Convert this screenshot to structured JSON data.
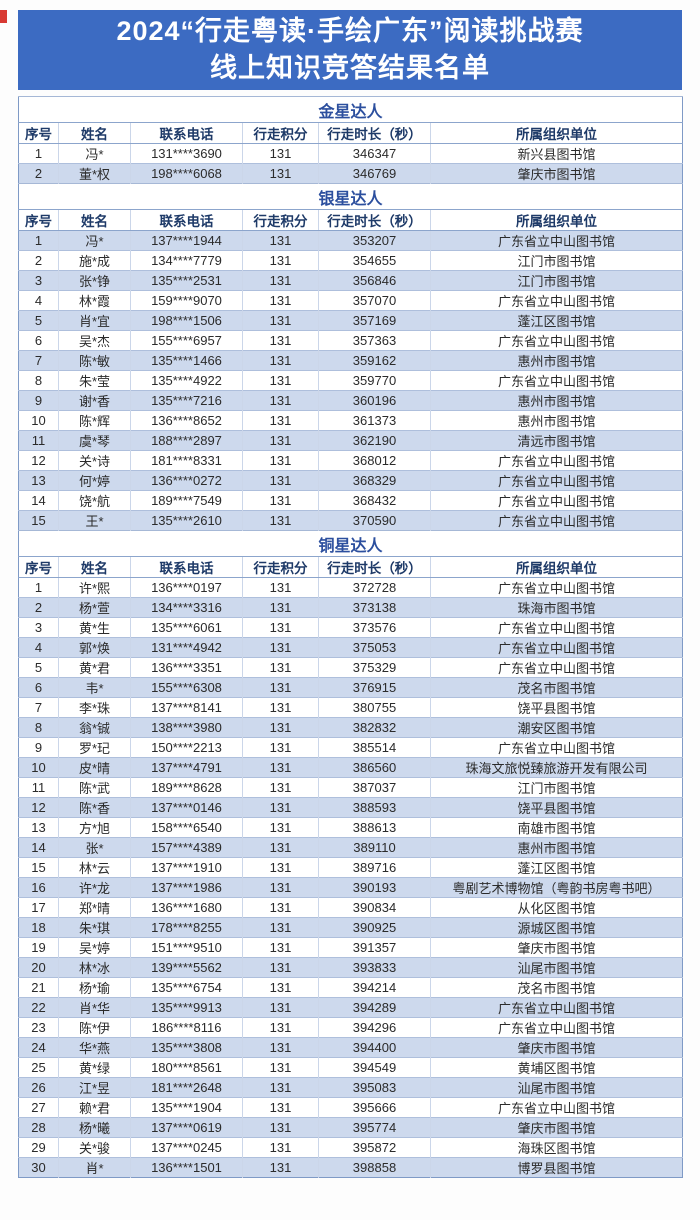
{
  "page": {
    "title_line1": "2024“行走粤读·手绘广东”阅读挑战赛",
    "title_line2": "线上知识竞答结果名单"
  },
  "colors": {
    "banner_bg": "#3c6bc2",
    "banner_text": "#ffffff",
    "section_title_text": "#2c4f9e",
    "header_text": "#1e3a68",
    "row_light_bg": "#cdd9ed",
    "row_white_bg": "#ffffff",
    "border": "#8ca5cc",
    "corner_mark": "#d83a33"
  },
  "table": {
    "columns": [
      "序号",
      "姓名",
      "联系电话",
      "行走积分",
      "行走时长（秒）",
      "所属组织单位"
    ],
    "sections": [
      {
        "title": "金星达人",
        "stripe": "even",
        "rows": [
          [
            "1",
            "冯*",
            "131****3690",
            "131",
            "346347",
            "新兴县图书馆"
          ],
          [
            "2",
            "董*权",
            "198****6068",
            "131",
            "346769",
            "肇庆市图书馆"
          ]
        ]
      },
      {
        "title": "银星达人",
        "stripe": "odd",
        "rows": [
          [
            "1",
            "冯*",
            "137****1944",
            "131",
            "353207",
            "广东省立中山图书馆"
          ],
          [
            "2",
            "施*成",
            "134****7779",
            "131",
            "354655",
            "江门市图书馆"
          ],
          [
            "3",
            "张*铮",
            "135****2531",
            "131",
            "356846",
            "江门市图书馆"
          ],
          [
            "4",
            "林*霞",
            "159****9070",
            "131",
            "357070",
            "广东省立中山图书馆"
          ],
          [
            "5",
            "肖*宜",
            "198****1506",
            "131",
            "357169",
            "蓬江区图书馆"
          ],
          [
            "6",
            "吴*杰",
            "155****6957",
            "131",
            "357363",
            "广东省立中山图书馆"
          ],
          [
            "7",
            "陈*敏",
            "135****1466",
            "131",
            "359162",
            "惠州市图书馆"
          ],
          [
            "8",
            "朱*莹",
            "135****4922",
            "131",
            "359770",
            "广东省立中山图书馆"
          ],
          [
            "9",
            "谢*香",
            "135****7216",
            "131",
            "360196",
            "惠州市图书馆"
          ],
          [
            "10",
            "陈*辉",
            "136****8652",
            "131",
            "361373",
            "惠州市图书馆"
          ],
          [
            "11",
            "虞*琴",
            "188****2897",
            "131",
            "362190",
            "清远市图书馆"
          ],
          [
            "12",
            "关*诗",
            "181****8331",
            "131",
            "368012",
            "广东省立中山图书馆"
          ],
          [
            "13",
            "何*婷",
            "136****0272",
            "131",
            "368329",
            "广东省立中山图书馆"
          ],
          [
            "14",
            "饶*航",
            "189****7549",
            "131",
            "368432",
            "广东省立中山图书馆"
          ],
          [
            "15",
            "王*",
            "135****2610",
            "131",
            "370590",
            "广东省立中山图书馆"
          ]
        ]
      },
      {
        "title": "铜星达人",
        "stripe": "even",
        "rows": [
          [
            "1",
            "许*熙",
            "136****0197",
            "131",
            "372728",
            "广东省立中山图书馆"
          ],
          [
            "2",
            "杨*萱",
            "134****3316",
            "131",
            "373138",
            "珠海市图书馆"
          ],
          [
            "3",
            "黄*生",
            "135****6061",
            "131",
            "373576",
            "广东省立中山图书馆"
          ],
          [
            "4",
            "郭*焕",
            "131****4942",
            "131",
            "375053",
            "广东省立中山图书馆"
          ],
          [
            "5",
            "黄*君",
            "136****3351",
            "131",
            "375329",
            "广东省立中山图书馆"
          ],
          [
            "6",
            "韦*",
            "155****6308",
            "131",
            "376915",
            "茂名市图书馆"
          ],
          [
            "7",
            "李*珠",
            "137****8141",
            "131",
            "380755",
            "饶平县图书馆"
          ],
          [
            "8",
            "翁*铖",
            "138****3980",
            "131",
            "382832",
            "潮安区图书馆"
          ],
          [
            "9",
            "罗*玘",
            "150****2213",
            "131",
            "385514",
            "广东省立中山图书馆"
          ],
          [
            "10",
            "皮*晴",
            "137****4791",
            "131",
            "386560",
            "珠海文旅悦臻旅游开发有限公司"
          ],
          [
            "11",
            "陈*武",
            "189****8628",
            "131",
            "387037",
            "江门市图书馆"
          ],
          [
            "12",
            "陈*香",
            "137****0146",
            "131",
            "388593",
            "饶平县图书馆"
          ],
          [
            "13",
            "方*旭",
            "158****6540",
            "131",
            "388613",
            "南雄市图书馆"
          ],
          [
            "14",
            "张*",
            "157****4389",
            "131",
            "389110",
            "惠州市图书馆"
          ],
          [
            "15",
            "林*云",
            "137****1910",
            "131",
            "389716",
            "蓬江区图书馆"
          ],
          [
            "16",
            "许*龙",
            "137****1986",
            "131",
            "390193",
            "粤剧艺术博物馆（粤韵书房粤书吧）"
          ],
          [
            "17",
            "郑*晴",
            "136****1680",
            "131",
            "390834",
            "从化区图书馆"
          ],
          [
            "18",
            "朱*琪",
            "178****8255",
            "131",
            "390925",
            "源城区图书馆"
          ],
          [
            "19",
            "吴*婷",
            "151****9510",
            "131",
            "391357",
            "肇庆市图书馆"
          ],
          [
            "20",
            "林*冰",
            "139****5562",
            "131",
            "393833",
            "汕尾市图书馆"
          ],
          [
            "21",
            "杨*瑜",
            "135****6754",
            "131",
            "394214",
            "茂名市图书馆"
          ],
          [
            "22",
            "肖*华",
            "135****9913",
            "131",
            "394289",
            "广东省立中山图书馆"
          ],
          [
            "23",
            "陈*伊",
            "186****8116",
            "131",
            "394296",
            "广东省立中山图书馆"
          ],
          [
            "24",
            "华*燕",
            "135****3808",
            "131",
            "394400",
            "肇庆市图书馆"
          ],
          [
            "25",
            "黄*绿",
            "180****8561",
            "131",
            "394549",
            "黄埔区图书馆"
          ],
          [
            "26",
            "江*昱",
            "181****2648",
            "131",
            "395083",
            "汕尾市图书馆"
          ],
          [
            "27",
            "赖*君",
            "135****1904",
            "131",
            "395666",
            "广东省立中山图书馆"
          ],
          [
            "28",
            "杨*曦",
            "137****0619",
            "131",
            "395774",
            "肇庆市图书馆"
          ],
          [
            "29",
            "关*骏",
            "137****0245",
            "131",
            "395872",
            "海珠区图书馆"
          ],
          [
            "30",
            "肖*",
            "136****1501",
            "131",
            "398858",
            "博罗县图书馆"
          ]
        ]
      }
    ]
  }
}
